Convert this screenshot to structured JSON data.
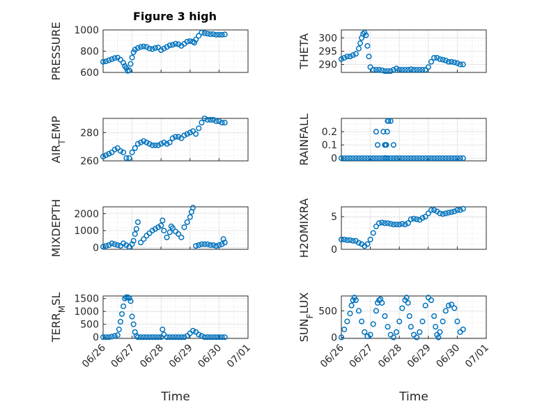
{
  "figure_title": "Figure 3 high",
  "marker_color": "#0072bd",
  "chart_data": [
    {
      "type": "scatter",
      "ylabel": "PRESSURE",
      "ylabel_sub": "",
      "ylim": [
        600,
        1000
      ],
      "yticks": [
        600,
        800,
        1000
      ],
      "xlim": [
        0,
        5
      ],
      "xtick_labels": [
        "06/26",
        "06/27",
        "06/28",
        "06/29",
        "06/30",
        "07/01"
      ],
      "title": "Figure 3 high",
      "x_axis_label": "",
      "grid": true,
      "x": [
        0,
        0.1,
        0.2,
        0.3,
        0.4,
        0.5,
        0.6,
        0.7,
        0.75,
        0.8,
        0.85,
        0.9,
        0.95,
        1,
        1.05,
        1.1,
        1.2,
        1.3,
        1.4,
        1.5,
        1.6,
        1.7,
        1.8,
        1.9,
        2,
        2.1,
        2.2,
        2.3,
        2.4,
        2.5,
        2.6,
        2.7,
        2.8,
        2.9,
        3,
        3.1,
        3.15,
        3.2,
        3.3,
        3.4,
        3.5,
        3.6,
        3.7,
        3.8,
        3.9,
        4,
        4.1,
        4.2
      ],
      "y": [
        700,
        705,
        715,
        725,
        735,
        740,
        720,
        690,
        660,
        640,
        615,
        620,
        680,
        740,
        790,
        815,
        830,
        840,
        845,
        840,
        825,
        820,
        830,
        835,
        810,
        825,
        840,
        855,
        860,
        870,
        865,
        850,
        870,
        890,
        895,
        890,
        880,
        910,
        945,
        975,
        970,
        965,
        960,
        960,
        955,
        955,
        955,
        958
      ]
    },
    {
      "type": "scatter",
      "ylabel": "THETA",
      "ylabel_sub": "",
      "ylim": [
        287,
        303
      ],
      "yticks": [
        290,
        295,
        300
      ],
      "xlim": [
        0,
        5
      ],
      "xtick_labels": [
        "06/26",
        "06/27",
        "06/28",
        "06/29",
        "06/30",
        "07/01"
      ],
      "title": "",
      "x_axis_label": "",
      "grid": true,
      "x": [
        0,
        0.1,
        0.2,
        0.3,
        0.4,
        0.5,
        0.6,
        0.65,
        0.7,
        0.75,
        0.8,
        0.85,
        0.9,
        0.95,
        1,
        1.1,
        1.2,
        1.3,
        1.4,
        1.5,
        1.6,
        1.7,
        1.8,
        1.9,
        2,
        2.1,
        2.2,
        2.3,
        2.4,
        2.5,
        2.6,
        2.7,
        2.8,
        2.9,
        3,
        3.1,
        3.2,
        3.3,
        3.4,
        3.5,
        3.6,
        3.7,
        3.8,
        3.9,
        4,
        4.1,
        4.2
      ],
      "y": [
        292,
        292.5,
        293,
        293,
        293.5,
        294,
        296,
        298,
        300,
        301.5,
        302,
        301,
        297,
        293,
        289,
        288,
        288,
        288,
        287.8,
        287.5,
        287.5,
        287.5,
        288,
        288.5,
        288,
        288,
        288,
        288,
        288.2,
        288,
        288,
        288,
        288,
        288,
        289,
        291,
        292.5,
        292.5,
        292,
        291.8,
        291.5,
        291,
        291,
        290.8,
        290.5,
        290,
        290
      ]
    },
    {
      "type": "scatter",
      "ylabel": "AIR",
      "ylabel_sub": "T",
      "ylabel_after": "EMP",
      "ylim": [
        260,
        290
      ],
      "yticks": [
        260,
        280
      ],
      "xlim": [
        0,
        5
      ],
      "xtick_labels": [
        "06/26",
        "06/27",
        "06/28",
        "06/29",
        "06/30",
        "07/01"
      ],
      "title": "",
      "x_axis_label": "",
      "grid": true,
      "x": [
        0,
        0.1,
        0.2,
        0.3,
        0.4,
        0.5,
        0.6,
        0.7,
        0.8,
        0.9,
        1,
        1.1,
        1.2,
        1.3,
        1.4,
        1.5,
        1.6,
        1.7,
        1.8,
        1.9,
        2,
        2.1,
        2.2,
        2.3,
        2.4,
        2.5,
        2.6,
        2.7,
        2.8,
        2.9,
        3,
        3.1,
        3.2,
        3.3,
        3.4,
        3.5,
        3.6,
        3.7,
        3.8,
        3.9,
        4,
        4.1,
        4.2
      ],
      "y": [
        263,
        264,
        265,
        266,
        268,
        269,
        267,
        266,
        262,
        262,
        266,
        269,
        272,
        273,
        274,
        273,
        272,
        271,
        271,
        271,
        272,
        273,
        272,
        273,
        276,
        277,
        277,
        276,
        278,
        279,
        280,
        281,
        279,
        283,
        287,
        290,
        289,
        289,
        289,
        288,
        288,
        287,
        287
      ]
    },
    {
      "type": "scatter",
      "ylabel": "RAINFALL",
      "ylabel_sub": "",
      "ylim": [
        -0.02,
        0.3
      ],
      "yticks": [
        0,
        0.1,
        0.2
      ],
      "xlim": [
        0,
        5
      ],
      "xtick_labels": [
        "06/26",
        "06/27",
        "06/28",
        "06/29",
        "06/30",
        "07/01"
      ],
      "title": "",
      "x_axis_label": "",
      "grid": true,
      "x": [
        0,
        0.1,
        0.2,
        0.3,
        0.4,
        0.5,
        0.6,
        0.7,
        0.8,
        0.9,
        1,
        1.1,
        1.2,
        1.3,
        1.4,
        1.5,
        1.6,
        1.7,
        1.8,
        1.9,
        2,
        2.1,
        2.2,
        2.3,
        2.4,
        2.5,
        2.6,
        2.7,
        2.8,
        2.9,
        3,
        3.1,
        3.2,
        3.3,
        3.4,
        3.5,
        3.6,
        3.7,
        3.8,
        3.9,
        4,
        4.1,
        4.2,
        1.2,
        1.25,
        1.5,
        1.45,
        1.52,
        1.55,
        1.58,
        1.6,
        1.62,
        1.7,
        1.5,
        1.55,
        1.8,
        1.9
      ],
      "y": [
        0,
        0,
        0,
        0,
        0,
        0,
        0,
        0,
        0,
        0,
        0,
        0,
        0,
        0,
        0,
        0,
        0,
        0,
        0,
        0,
        0,
        0,
        0,
        0,
        0,
        0,
        0,
        0,
        0,
        0,
        0,
        0,
        0,
        0,
        0,
        0,
        0,
        0,
        0,
        0,
        0,
        0,
        0,
        0.2,
        0.1,
        0.1,
        0.2,
        0.1,
        0.1,
        0.2,
        0.28,
        0.28,
        0.28,
        0,
        0,
        0.1,
        0
      ]
    },
    {
      "type": "scatter",
      "ylabel": "MIXDEPTH",
      "ylabel_sub": "",
      "ylim": [
        -100,
        2400
      ],
      "yticks": [
        0,
        1000,
        2000
      ],
      "xlim": [
        0,
        5
      ],
      "xtick_labels": [
        "06/26",
        "06/27",
        "06/28",
        "06/29",
        "06/30",
        "07/01"
      ],
      "title": "",
      "x_axis_label": "",
      "grid": true,
      "x": [
        0,
        0.1,
        0.2,
        0.3,
        0.4,
        0.5,
        0.6,
        0.7,
        0.8,
        0.9,
        1,
        1.05,
        1.1,
        1.15,
        1.2,
        1.3,
        1.4,
        1.5,
        1.6,
        1.7,
        1.8,
        1.9,
        2,
        2.05,
        2.1,
        2.2,
        2.3,
        2.35,
        2.4,
        2.5,
        2.6,
        2.7,
        2.8,
        2.9,
        3,
        3.05,
        3.1,
        3.2,
        3.3,
        3.4,
        3.5,
        3.6,
        3.7,
        3.8,
        3.9,
        4,
        4.1,
        4.2,
        4.15
      ],
      "y": [
        50,
        100,
        150,
        250,
        200,
        150,
        100,
        250,
        150,
        50,
        200,
        400,
        800,
        1100,
        1500,
        300,
        500,
        700,
        850,
        1000,
        1100,
        1200,
        1300,
        1600,
        1000,
        600,
        900,
        1250,
        1150,
        950,
        800,
        600,
        1200,
        1500,
        1800,
        2100,
        2350,
        100,
        150,
        200,
        200,
        200,
        150,
        150,
        100,
        150,
        200,
        300,
        500
      ]
    },
    {
      "type": "scatter",
      "ylabel": "H2OMIXRA",
      "ylabel_sub": "",
      "ylim": [
        0,
        6.5
      ],
      "yticks": [
        0,
        5
      ],
      "xlim": [
        0,
        5
      ],
      "xtick_labels": [
        "06/26",
        "06/27",
        "06/28",
        "06/29",
        "06/30",
        "07/01"
      ],
      "title": "",
      "x_axis_label": "",
      "grid": true,
      "x": [
        0,
        0.1,
        0.2,
        0.3,
        0.4,
        0.5,
        0.6,
        0.7,
        0.8,
        0.9,
        1,
        1.1,
        1.2,
        1.3,
        1.4,
        1.5,
        1.6,
        1.7,
        1.8,
        1.9,
        2,
        2.1,
        2.2,
        2.3,
        2.4,
        2.5,
        2.6,
        2.7,
        2.8,
        2.9,
        3,
        3.1,
        3.2,
        3.3,
        3.4,
        3.5,
        3.6,
        3.7,
        3.8,
        3.9,
        4,
        4.1,
        4.2
      ],
      "y": [
        1.5,
        1.5,
        1.4,
        1.4,
        1.3,
        1.3,
        1.0,
        0.8,
        0.5,
        0.8,
        1.5,
        2.5,
        3.5,
        4.0,
        4.1,
        4.0,
        4.0,
        3.9,
        3.8,
        3.8,
        3.8,
        3.9,
        3.8,
        4.0,
        4.6,
        4.7,
        4.6,
        4.5,
        4.8,
        5.0,
        5.5,
        6.0,
        6.0,
        5.8,
        5.5,
        5.4,
        5.5,
        5.6,
        5.7,
        5.8,
        6.0,
        6.0,
        6.2
      ]
    },
    {
      "type": "scatter",
      "ylabel": "TERR",
      "ylabel_sub": "M",
      "ylabel_after": "SL",
      "ylim": [
        -50,
        1600
      ],
      "yticks": [
        0,
        500,
        1000,
        1500
      ],
      "xlim": [
        0,
        5
      ],
      "xtick_labels": [
        "06/26",
        "06/27",
        "06/28",
        "06/29",
        "06/30",
        "07/01"
      ],
      "title": "",
      "x_axis_label": "Time",
      "grid": true,
      "x": [
        0,
        0.1,
        0.2,
        0.3,
        0.4,
        0.5,
        0.55,
        0.6,
        0.65,
        0.7,
        0.75,
        0.8,
        0.85,
        0.9,
        0.95,
        1,
        1.05,
        1.1,
        1.15,
        1.2,
        1.3,
        1.4,
        1.5,
        1.6,
        1.7,
        1.8,
        1.9,
        2,
        2.05,
        2.1,
        2.2,
        2.3,
        2.4,
        2.5,
        2.6,
        2.7,
        2.8,
        2.9,
        3,
        3.1,
        3.2,
        3.3,
        3.4,
        3.5,
        3.6,
        3.7,
        3.8,
        3.9,
        4,
        4.1,
        4.2
      ],
      "y": [
        0,
        0,
        0,
        20,
        50,
        80,
        300,
        600,
        900,
        1200,
        1500,
        1550,
        1550,
        1520,
        1400,
        800,
        500,
        200,
        50,
        0,
        0,
        0,
        0,
        0,
        0,
        0,
        0,
        0,
        300,
        100,
        0,
        0,
        0,
        0,
        0,
        0,
        0,
        50,
        150,
        250,
        200,
        100,
        50,
        0,
        0,
        0,
        0,
        0,
        0,
        0,
        0
      ]
    },
    {
      "type": "scatter",
      "ylabel": "SUN",
      "ylabel_sub": "F",
      "ylabel_after": "LUX",
      "ylim": [
        -20,
        780
      ],
      "yticks": [
        0,
        500
      ],
      "xlim": [
        0,
        5
      ],
      "xtick_labels": [
        "06/26",
        "06/27",
        "06/28",
        "06/29",
        "06/30",
        "07/01"
      ],
      "title": "",
      "x_axis_label": "Time",
      "grid": true,
      "x": [
        0,
        0.1,
        0.2,
        0.3,
        0.35,
        0.4,
        0.45,
        0.5,
        0.6,
        0.7,
        0.8,
        0.9,
        1,
        1.1,
        1.2,
        1.25,
        1.3,
        1.35,
        1.4,
        1.5,
        1.6,
        1.7,
        1.8,
        1.9,
        2,
        2.1,
        2.2,
        2.25,
        2.3,
        2.35,
        2.4,
        2.5,
        2.6,
        2.7,
        2.8,
        2.9,
        3,
        3.1,
        3.2,
        3.25,
        3.3,
        3.35,
        3.4,
        3.5,
        3.6,
        3.7,
        3.8,
        3.9,
        4,
        4.1,
        4.2
      ],
      "y": [
        0,
        150,
        300,
        450,
        600,
        700,
        750,
        700,
        500,
        300,
        100,
        20,
        50,
        250,
        500,
        650,
        700,
        720,
        650,
        400,
        200,
        50,
        0,
        100,
        300,
        550,
        700,
        750,
        650,
        400,
        200,
        50,
        0,
        100,
        300,
        600,
        750,
        700,
        400,
        200,
        50,
        0,
        100,
        300,
        500,
        600,
        620,
        550,
        300,
        100,
        150
      ]
    }
  ]
}
